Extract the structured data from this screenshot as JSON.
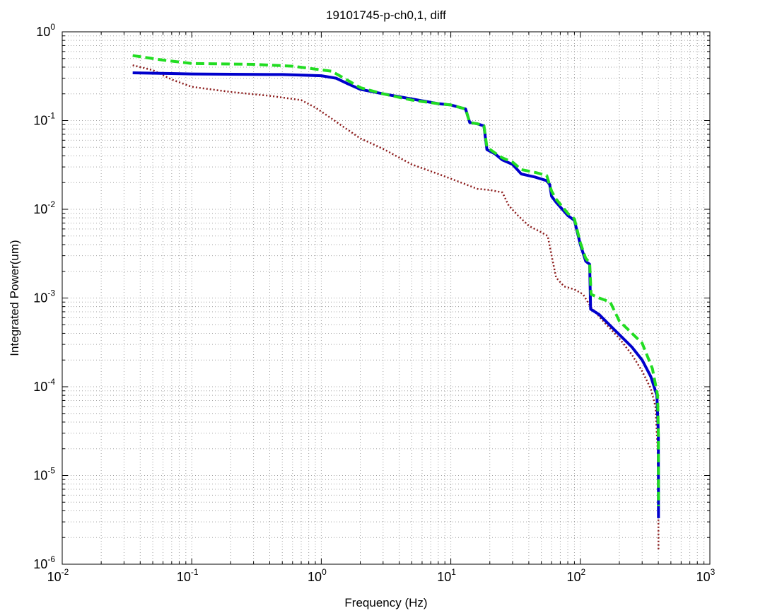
{
  "chart_data": {
    "type": "line",
    "title": "19101745-p-ch0,1, diff",
    "xlabel": "Frequency (Hz)",
    "ylabel": "Integrated Power(um)",
    "xscale": "log",
    "yscale": "log",
    "xlim": [
      0.01,
      1000
    ],
    "ylim": [
      1e-06,
      1
    ],
    "grid": true,
    "xticks": [
      {
        "base": "10",
        "exp": "-2",
        "value": 0.01
      },
      {
        "base": "10",
        "exp": "-1",
        "value": 0.1
      },
      {
        "base": "10",
        "exp": "0",
        "value": 1
      },
      {
        "base": "10",
        "exp": "1",
        "value": 10
      },
      {
        "base": "10",
        "exp": "2",
        "value": 100
      },
      {
        "base": "10",
        "exp": "3",
        "value": 1000
      }
    ],
    "yticks": [
      {
        "base": "10",
        "exp": "-6",
        "value": 1e-06
      },
      {
        "base": "10",
        "exp": "-5",
        "value": 1e-05
      },
      {
        "base": "10",
        "exp": "-4",
        "value": 0.0001
      },
      {
        "base": "10",
        "exp": "-3",
        "value": 0.001
      },
      {
        "base": "10",
        "exp": "-2",
        "value": 0.01
      },
      {
        "base": "10",
        "exp": "-1",
        "value": 0.1
      },
      {
        "base": "10",
        "exp": "0",
        "value": 1
      }
    ],
    "series": [
      {
        "color": "#8b1a1a",
        "style": "dotted",
        "points": [
          [
            0.035,
            0.42
          ],
          [
            0.05,
            0.37
          ],
          [
            0.07,
            0.29
          ],
          [
            0.1,
            0.24
          ],
          [
            0.2,
            0.21
          ],
          [
            0.4,
            0.19
          ],
          [
            0.7,
            0.17
          ],
          [
            0.9,
            0.14
          ],
          [
            1.1,
            0.115
          ],
          [
            1.4,
            0.09
          ],
          [
            2.0,
            0.063
          ],
          [
            3.0,
            0.048
          ],
          [
            5.0,
            0.032
          ],
          [
            8.0,
            0.025
          ],
          [
            12.0,
            0.02
          ],
          [
            16.0,
            0.017
          ],
          [
            20.0,
            0.0165
          ],
          [
            25.0,
            0.0155
          ],
          [
            28.0,
            0.011
          ],
          [
            33.0,
            0.0085
          ],
          [
            40.0,
            0.0065
          ],
          [
            50.0,
            0.0055
          ],
          [
            56.0,
            0.005
          ],
          [
            60.0,
            0.003
          ],
          [
            65.0,
            0.0017
          ],
          [
            75.0,
            0.00135
          ],
          [
            90.0,
            0.00125
          ],
          [
            105.0,
            0.0011
          ],
          [
            120.0,
            0.0008
          ],
          [
            150.0,
            0.00055
          ],
          [
            200.0,
            0.00035
          ],
          [
            250.0,
            0.00023
          ],
          [
            300.0,
            0.00015
          ],
          [
            350.0,
            9.5e-05
          ],
          [
            380.0,
            6e-05
          ],
          [
            395.0,
            2e-05
          ],
          [
            400.0,
            5e-06
          ],
          [
            401.0,
            1.4e-06
          ]
        ]
      },
      {
        "color": "#0000cc",
        "style": "solid",
        "points": [
          [
            0.035,
            0.345
          ],
          [
            0.1,
            0.335
          ],
          [
            0.5,
            0.33
          ],
          [
            1.0,
            0.32
          ],
          [
            1.3,
            0.3
          ],
          [
            1.6,
            0.26
          ],
          [
            2.0,
            0.225
          ],
          [
            3.0,
            0.2
          ],
          [
            5.0,
            0.175
          ],
          [
            8.0,
            0.155
          ],
          [
            10.0,
            0.15
          ],
          [
            13.0,
            0.135
          ],
          [
            14.0,
            0.095
          ],
          [
            16.0,
            0.092
          ],
          [
            18.0,
            0.087
          ],
          [
            19.0,
            0.047
          ],
          [
            22.0,
            0.042
          ],
          [
            25.0,
            0.036
          ],
          [
            30.0,
            0.032
          ],
          [
            35.0,
            0.025
          ],
          [
            45.0,
            0.023
          ],
          [
            55.0,
            0.021
          ],
          [
            58.0,
            0.019
          ],
          [
            60.0,
            0.014
          ],
          [
            65.0,
            0.012
          ],
          [
            80.0,
            0.0085
          ],
          [
            90.0,
            0.0075
          ],
          [
            100.0,
            0.004
          ],
          [
            110.0,
            0.0026
          ],
          [
            118.0,
            0.0024
          ],
          [
            120.0,
            0.00075
          ],
          [
            140.0,
            0.00065
          ],
          [
            180.0,
            0.00045
          ],
          [
            250.0,
            0.00028
          ],
          [
            300.0,
            0.0002
          ],
          [
            350.0,
            0.00013
          ],
          [
            390.0,
            8e-05
          ],
          [
            400.0,
            3e-05
          ],
          [
            401.0,
            3.3e-06
          ]
        ]
      },
      {
        "color": "#22dd22",
        "style": "dashed",
        "points": [
          [
            0.035,
            0.54
          ],
          [
            0.06,
            0.48
          ],
          [
            0.1,
            0.44
          ],
          [
            0.3,
            0.43
          ],
          [
            0.6,
            0.41
          ],
          [
            0.9,
            0.38
          ],
          [
            1.2,
            0.36
          ],
          [
            1.5,
            0.3
          ],
          [
            2.0,
            0.235
          ],
          [
            3.0,
            0.2
          ],
          [
            5.0,
            0.17
          ],
          [
            8.0,
            0.155
          ],
          [
            10.0,
            0.15
          ],
          [
            13.0,
            0.135
          ],
          [
            14.0,
            0.095
          ],
          [
            16.0,
            0.092
          ],
          [
            18.0,
            0.088
          ],
          [
            19.0,
            0.05
          ],
          [
            22.0,
            0.043
          ],
          [
            25.0,
            0.038
          ],
          [
            30.0,
            0.034
          ],
          [
            35.0,
            0.028
          ],
          [
            45.0,
            0.026
          ],
          [
            55.0,
            0.024
          ],
          [
            60.0,
            0.016
          ],
          [
            65.0,
            0.013
          ],
          [
            80.0,
            0.009
          ],
          [
            90.0,
            0.0078
          ],
          [
            100.0,
            0.0042
          ],
          [
            110.0,
            0.0028
          ],
          [
            118.0,
            0.0025
          ],
          [
            121.0,
            0.0011
          ],
          [
            140.0,
            0.001
          ],
          [
            170.0,
            0.0009
          ],
          [
            200.0,
            0.00055
          ],
          [
            300.0,
            0.00031
          ],
          [
            360.0,
            0.00016
          ],
          [
            395.0,
            8e-05
          ],
          [
            400.0,
            3e-05
          ],
          [
            401.0,
            4.5e-06
          ]
        ]
      }
    ]
  }
}
